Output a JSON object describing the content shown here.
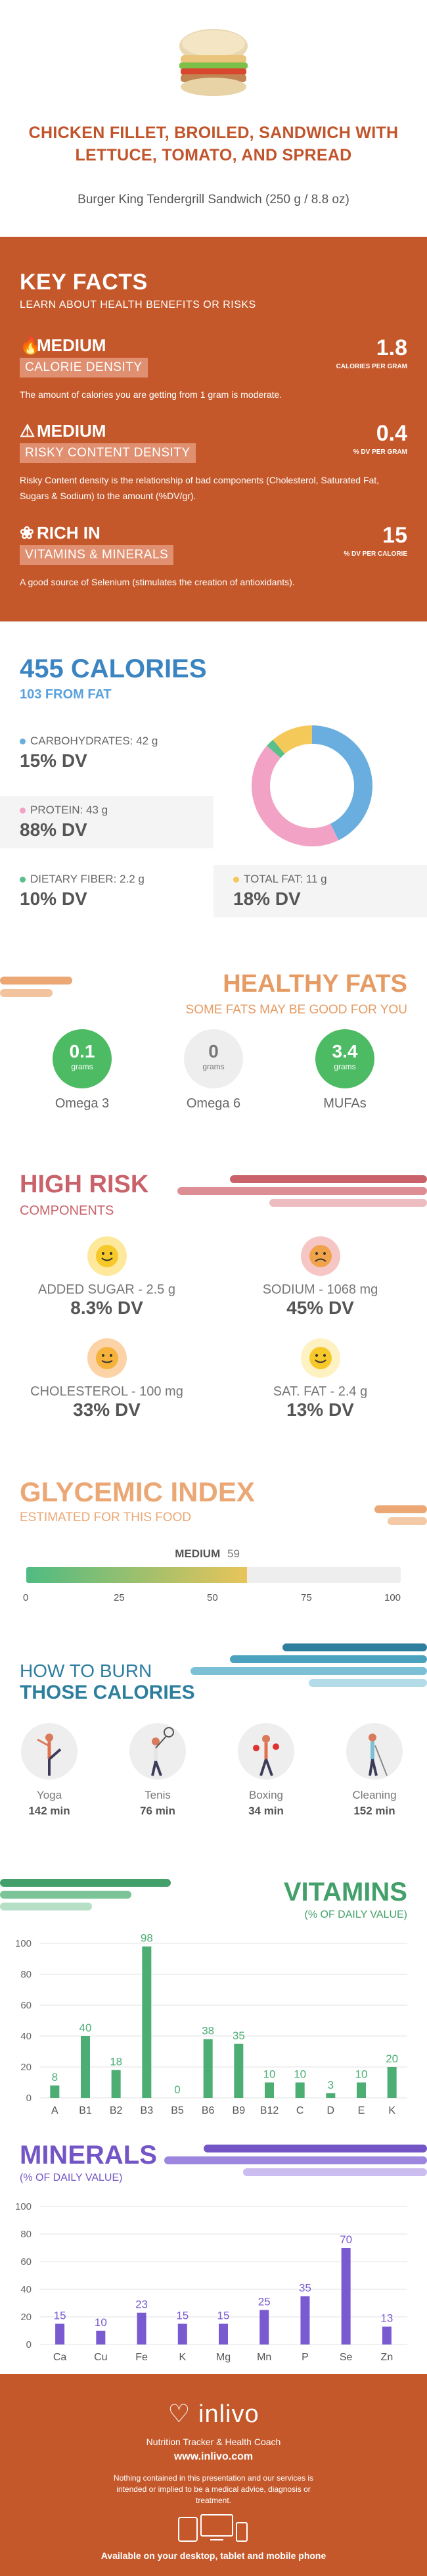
{
  "header": {
    "title": "CHICKEN FILLET, BROILED, SANDWICH WITH LETTUCE, TOMATO, AND SPREAD",
    "subtitle": "Burger King Tendergrill Sandwich (250 g / 8.8 oz)"
  },
  "key_facts": {
    "title": "KEY FACTS",
    "subtitle": "LEARN ABOUT HEALTH BENEFITS OR RISKS",
    "items": [
      {
        "level": "MEDIUM",
        "band": "CALORIE DENSITY",
        "value": "1.8",
        "value_label": "CALORIES PER GRAM",
        "desc": "The amount of calories you are getting from 1 gram is moderate.",
        "icon": "flame-icon"
      },
      {
        "level": "MEDIUM",
        "band": "RISKY CONTENT DENSITY",
        "value": "0.4",
        "value_label": "% DV PER GRAM",
        "desc": "Risky Content density is the relationship of bad components (Cholesterol, Saturated Fat, Sugars & Sodium) to the amount (%DV/gr).",
        "icon": "warning-icon"
      },
      {
        "level": "RICH IN",
        "band": "VITAMINS & MINERALS",
        "value": "15",
        "value_label": "% DV PER CALORIE",
        "desc": "A good source of Selenium (stimulates the creation of antioxidants).",
        "icon": "leaf-icon"
      }
    ]
  },
  "calories": {
    "total": "455 CALORIES",
    "from_fat": "103 FROM FAT",
    "macros": [
      {
        "label": "CARBOHYDRATES: 42 g",
        "dv": "15% DV",
        "color": "#6aaee0"
      },
      {
        "label": "PROTEIN: 43 g",
        "dv": "88% DV",
        "color": "#f2a2c4"
      },
      {
        "label": "DIETARY FIBER: 2.2 g",
        "dv": "10% DV",
        "color": "#5bbf8a"
      },
      {
        "label": "TOTAL FAT: 11 g",
        "dv": "18% DV",
        "color": "#f5c85a"
      }
    ]
  },
  "chart_data": {
    "type": "pie",
    "categories": [
      "Carbohydrates",
      "Protein",
      "Dietary fiber",
      "Total fat"
    ],
    "values": [
      42,
      43,
      2.2,
      11
    ]
  },
  "healthy_fats": {
    "title": "HEALTHY FATS",
    "subtitle": "SOME FATS MAY BE GOOD FOR YOU",
    "items": [
      {
        "value": "0.1",
        "unit": "grams",
        "name": "Omega 3"
      },
      {
        "value": "0",
        "unit": "grams",
        "name": "Omega 6"
      },
      {
        "value": "3.4",
        "unit": "grams",
        "name": "MUFAs"
      }
    ]
  },
  "high_risk": {
    "title": "HIGH RISK",
    "subtitle": "COMPONENTS",
    "items": [
      {
        "label": "ADDED SUGAR - 2.5 g",
        "dv": "8.3% DV",
        "face": "happy-face-icon"
      },
      {
        "label": "SODIUM - 1068 mg",
        "dv": "45% DV",
        "face": "sad-face-icon"
      },
      {
        "label": "CHOLESTEROL - 100 mg",
        "dv": "33% DV",
        "face": "neutral-face-icon"
      },
      {
        "label": "SAT. FAT - 2.4 g",
        "dv": "13% DV",
        "face": "happy-face-icon"
      }
    ]
  },
  "glycemic": {
    "title": "GLYCEMIC INDEX",
    "subtitle": "ESTIMATED FOR THIS FOOD",
    "level": "MEDIUM",
    "value": "59",
    "value_num": 59,
    "ticks": [
      "0",
      "25",
      "50",
      "75",
      "100"
    ]
  },
  "burn": {
    "title1": "HOW TO BURN",
    "title2": "THOSE CALORIES",
    "activities": [
      {
        "name": "Yoga",
        "minutes": "142 min"
      },
      {
        "name": "Tenis",
        "minutes": "76 min"
      },
      {
        "name": "Boxing",
        "minutes": "34 min"
      },
      {
        "name": "Cleaning",
        "minutes": "152 min"
      }
    ]
  },
  "vitamins": {
    "title": "VITAMINS",
    "subtitle": "(% OF DAILY VALUE)",
    "categories": [
      "A",
      "B1",
      "B2",
      "B3",
      "B5",
      "B6",
      "B9",
      "B12",
      "C",
      "D",
      "E",
      "K"
    ],
    "values": [
      8,
      40,
      18,
      98,
      0,
      38,
      35,
      10,
      10,
      3,
      10,
      20
    ],
    "yticks": [
      "100",
      "80",
      "60",
      "40",
      "20",
      "0"
    ],
    "color": "#4dae74"
  },
  "minerals": {
    "title": "MINERALS",
    "subtitle": "(% OF DAILY VALUE)",
    "categories": [
      "Ca",
      "Cu",
      "Fe",
      "K",
      "Mg",
      "Mn",
      "P",
      "Se",
      "Zn"
    ],
    "values": [
      15,
      10,
      23,
      15,
      15,
      25,
      35,
      70,
      13
    ],
    "yticks": [
      "100",
      "80",
      "60",
      "40",
      "20",
      "0"
    ],
    "color": "#7a5ad0"
  },
  "footer": {
    "brand": "inlivo",
    "tagline": "Nutrition Tracker & Health Coach",
    "url": "www.inlivo.com",
    "disclaimer": "Nothing contained in this presentation and our services is intended or implied to be a medical advice, diagnosis or treatment.",
    "available": "Available on your desktop, tablet and mobile phone"
  }
}
